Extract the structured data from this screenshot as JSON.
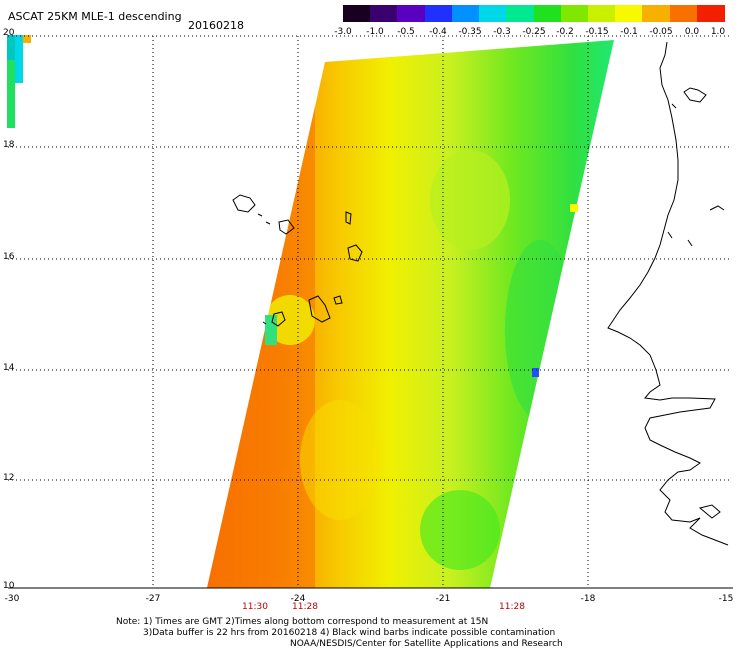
{
  "header": {
    "title": "ASCAT 25KM MLE-1 descending",
    "date": "20160218"
  },
  "colorbar": {
    "labels": [
      "-3.0",
      "-1.0",
      "-0.5",
      "-0.4",
      "-0.35",
      "-0.3",
      "-0.25",
      "-0.2",
      "-0.15",
      "-0.1",
      "-0.05",
      "0.0",
      "1.0"
    ],
    "colors": [
      "#1a0020",
      "#3a0070",
      "#5a00c0",
      "#2030ff",
      "#0090ff",
      "#00d8e8",
      "#00e890",
      "#20e020",
      "#80e800",
      "#c8f000",
      "#f8f800",
      "#f8b000",
      "#f87000",
      "#f02000"
    ]
  },
  "axes": {
    "lat_labels": [
      "20",
      "18",
      "16",
      "14",
      "12",
      "10"
    ],
    "lon_labels": [
      "-30",
      "-27",
      "-24",
      "-21",
      "-18",
      "-15"
    ],
    "time_labels": [
      "11:30",
      "11:28",
      "11:28"
    ]
  },
  "notes": {
    "line1": "Note: 1) Times are GMT 2)Times along bottom correspond to measurement at 15N",
    "line2": "3)Data buffer is 22 hrs from 20160218 4) Black wind barbs indicate possible contamination",
    "line3": "NOAA/NESDIS/Center for Satellite Applications and Research"
  }
}
